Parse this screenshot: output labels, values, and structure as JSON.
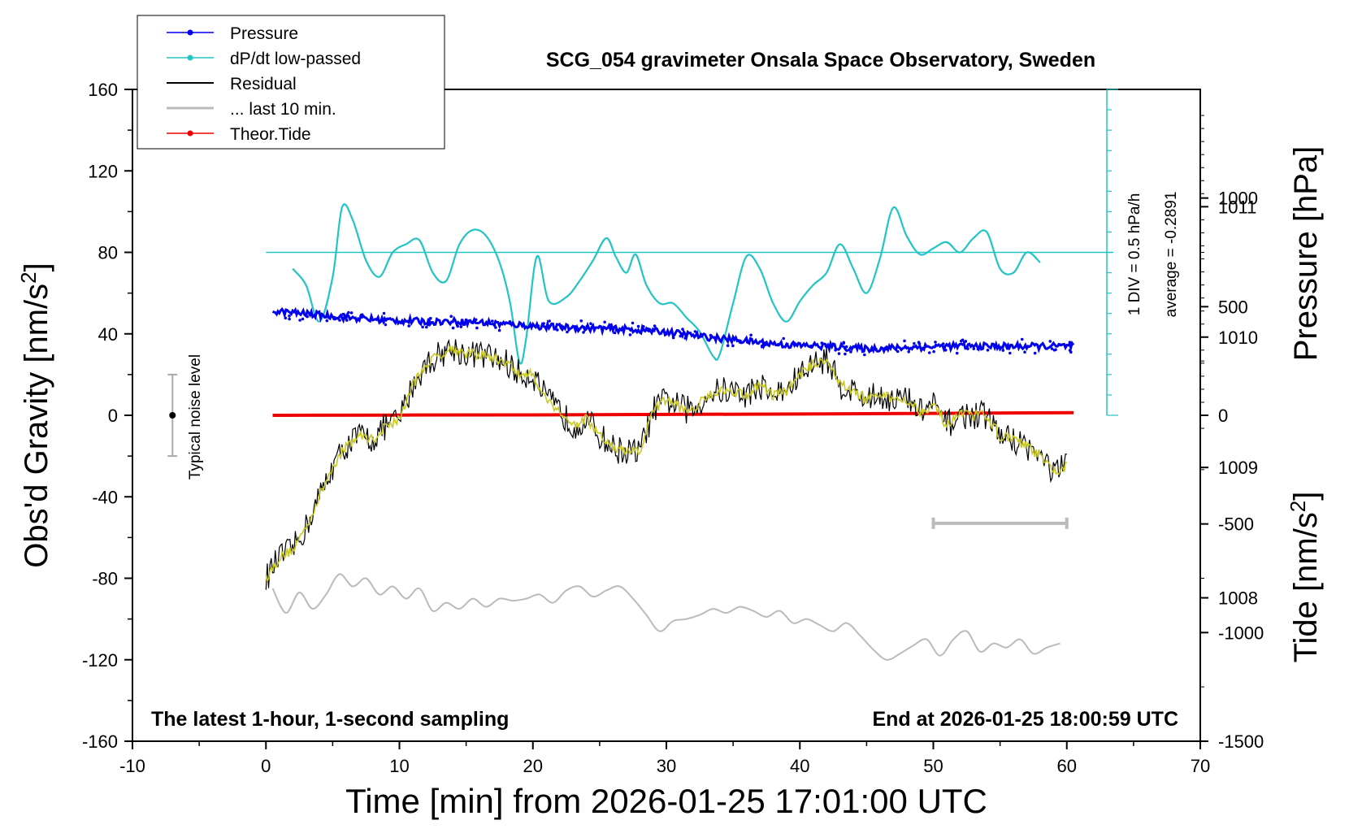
{
  "chart_data": {
    "type": "line",
    "title": "SCG_054 gravimeter Onsala Space Observatory, Sweden",
    "subtitle_left": "The latest 1-hour, 1-second sampling",
    "subtitle_right": "End at 2026-01-25 18:00:59 UTC",
    "xlabel": "Time [min] from 2026-01-25 17:01:00 UTC",
    "ylabel": "Obs'd Gravity [nm/s2]",
    "ylabel_main": "Obs'd Gravity [nm/s",
    "ylabel_sup": "2",
    "ylabel_close": "]",
    "y2label": "Pressure [hPa]",
    "y3label": "Tide [nm/s2]",
    "y3label_main": "Tide [nm/s",
    "y3label_sup": "2",
    "y3label_close": "]",
    "xlim": [
      -10,
      70
    ],
    "ylim": [
      -160,
      160
    ],
    "pressure_lim": [
      1006.9,
      1011.9
    ],
    "tide_lim": [
      -1500,
      1500
    ],
    "x_ticks": [
      "-10",
      "0",
      "10",
      "20",
      "30",
      "40",
      "50",
      "60",
      "70"
    ],
    "y_ticks": [
      "160",
      "120",
      "80",
      "40",
      "0",
      "-40",
      "-80",
      "-120",
      "-160"
    ],
    "pressure_ticks": [
      "1011",
      "1010",
      "1009",
      "1008"
    ],
    "tide_ticks": [
      "1000",
      "500",
      "0",
      "-500",
      "-1000",
      "-1500"
    ],
    "legend": [
      {
        "label": "Pressure",
        "color": "#0000ee",
        "marker": true
      },
      {
        "label": "dP/dt low-passed",
        "color": "#22c4c4",
        "marker": true
      },
      {
        "label": "Residual",
        "color": "#000000",
        "marker": false
      },
      {
        "label": "... last 10 min.",
        "color": "#bbbbbb",
        "marker": false
      },
      {
        "label": "Theor.Tide",
        "color": "#ee0000",
        "marker": true
      }
    ],
    "noise_label": "Typical noise level",
    "noise_range": [
      -20,
      20
    ],
    "noise_x": -7,
    "ddt_div_label": "1 DIV = 0.5 hPa/h",
    "ddt_avg_label": "average = -0.2891",
    "ddt_baseline": 80,
    "ddt_scale_top": 160,
    "ddt_scale_bottom": 0,
    "last10_bar": {
      "x_start": 50,
      "x_end": 60,
      "y": -53
    },
    "series": [
      {
        "name": "Pressure",
        "axis": "pressure_hpa",
        "x": [
          0.5,
          3,
          6,
          9,
          12,
          15,
          18,
          21,
          24,
          27,
          30,
          33,
          36,
          39,
          42,
          45,
          48,
          51,
          54,
          57,
          60.5
        ],
        "values": [
          1010.2,
          1010.18,
          1010.15,
          1010.13,
          1010.12,
          1010.12,
          1010.1,
          1010.08,
          1010.07,
          1010.06,
          1010.04,
          1010.0,
          1009.97,
          1009.94,
          1009.93,
          1009.91,
          1009.92,
          1009.93,
          1009.93,
          1009.93,
          1009.93
        ]
      },
      {
        "name": "dP/dt low-passed",
        "axis": "gravity",
        "x": [
          2,
          3,
          4,
          5,
          5.7,
          6.5,
          7.5,
          8.5,
          9.5,
          10.5,
          11.5,
          12.5,
          13.5,
          14.5,
          15.5,
          16.5,
          17.5,
          18.3,
          19,
          19.5,
          20.3,
          21.2,
          22.5,
          23.5,
          24.5,
          25.5,
          26.2,
          27,
          27.7,
          28.5,
          29.5,
          30.5,
          31.5,
          32.5,
          33.5,
          34,
          35,
          36,
          37,
          38,
          39,
          40,
          41,
          42,
          43,
          44,
          45,
          46,
          47,
          48,
          49,
          50,
          51,
          52,
          53,
          54,
          55,
          56,
          57,
          58
        ],
        "values": [
          72,
          64,
          46,
          68,
          102,
          96,
          76,
          68,
          80,
          84,
          86,
          70,
          66,
          84,
          91,
          88,
          75,
          55,
          26,
          38,
          78,
          56,
          58,
          66,
          76,
          87,
          78,
          70,
          79,
          64,
          55,
          55,
          48,
          41,
          29,
          30,
          55,
          78,
          72,
          55,
          46,
          56,
          64,
          70,
          84,
          72,
          60,
          77,
          102,
          88,
          79,
          82,
          85,
          80,
          87,
          90,
          72,
          70,
          80,
          75
        ]
      },
      {
        "name": "Residual",
        "axis": "gravity",
        "x": [
          0,
          1,
          2,
          3,
          4,
          5,
          6,
          7,
          8,
          9,
          10,
          11,
          12,
          13,
          14,
          15,
          16,
          17,
          18,
          19,
          20,
          21,
          22,
          23,
          24,
          25,
          26,
          27,
          28,
          29,
          30,
          31,
          32,
          33,
          34,
          35,
          36,
          37,
          38,
          39,
          40,
          41,
          42,
          43,
          44,
          45,
          46,
          47,
          48,
          49,
          50,
          51,
          52,
          53,
          54,
          55,
          56,
          57,
          58,
          59,
          60
        ],
        "values": [
          -80,
          -70,
          -66,
          -55,
          -40,
          -25,
          -15,
          -10,
          -12,
          -5,
          -2,
          15,
          25,
          30,
          33,
          30,
          30,
          28,
          26,
          20,
          20,
          8,
          2,
          -5,
          -2,
          -10,
          -16,
          -18,
          -18,
          2,
          8,
          4,
          2,
          10,
          12,
          12,
          10,
          15,
          10,
          12,
          20,
          25,
          28,
          15,
          12,
          8,
          10,
          8,
          8,
          2,
          5,
          -5,
          0,
          0,
          0,
          -10,
          -12,
          -15,
          -20,
          -28,
          -25
        ]
      },
      {
        "name": "... last 10 min.",
        "axis": "gravity",
        "x": [
          0.5,
          1.5,
          2.5,
          3.5,
          4.5,
          5.5,
          6.5,
          7.5,
          8.5,
          9.5,
          10.5,
          11.5,
          12.5,
          13.5,
          14.5,
          15.5,
          16.5,
          17.5,
          18.5,
          19.5,
          20.5,
          21.5,
          22.5,
          23.5,
          24.5,
          25.5,
          26.5,
          27.5,
          28.5,
          29.5,
          30.5,
          31.5,
          32.5,
          33.5,
          34.5,
          35.5,
          36.5,
          37.5,
          38.5,
          39.5,
          40.5,
          41.5,
          42.5,
          43.5,
          44.5,
          45.5,
          46.5,
          47.5,
          48.5,
          49.5,
          50.5,
          51.5,
          52.5,
          53.5,
          54.5,
          55.5,
          56.5,
          57.5,
          58.5,
          59.5
        ],
        "values": [
          -85,
          -97,
          -87,
          -95,
          -88,
          -78,
          -84,
          -80,
          -88,
          -84,
          -90,
          -85,
          -96,
          -92,
          -95,
          -90,
          -94,
          -90,
          -91,
          -90,
          -88,
          -92,
          -86,
          -84,
          -89,
          -86,
          -84,
          -90,
          -98,
          -106,
          -101,
          -100,
          -98,
          -95,
          -97,
          -94,
          -96,
          -99,
          -96,
          -102,
          -100,
          -103,
          -106,
          -102,
          -108,
          -115,
          -120,
          -117,
          -113,
          -110,
          -118,
          -110,
          -106,
          -116,
          -112,
          -114,
          -110,
          -117,
          -114,
          -112
        ]
      },
      {
        "name": "Theor.Tide",
        "axis": "tide_nms2",
        "x": [
          0.5,
          10,
          20,
          30,
          40,
          50,
          60.5
        ],
        "values": [
          0,
          1,
          2,
          4,
          6,
          9,
          12
        ]
      }
    ]
  }
}
